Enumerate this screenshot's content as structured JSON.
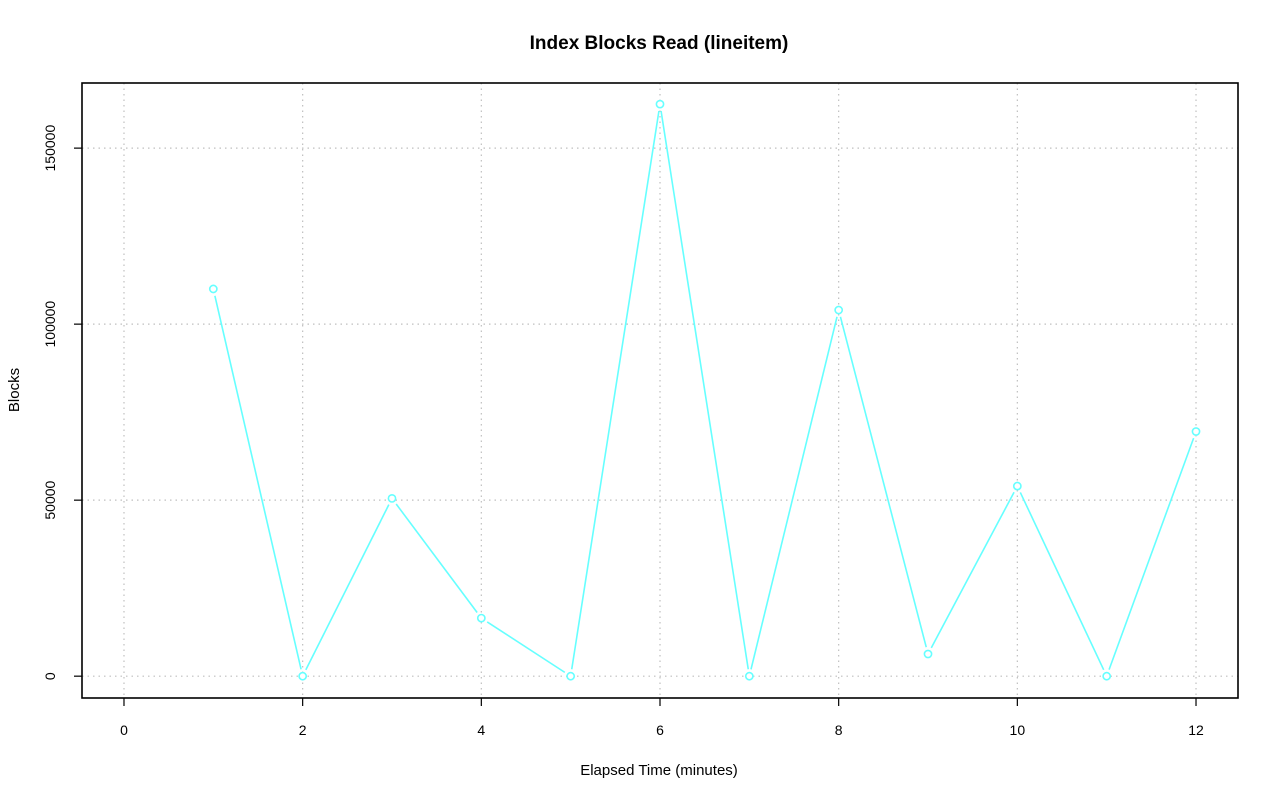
{
  "chart_data": {
    "type": "line",
    "title": "Index Blocks Read (lineitem)",
    "xlabel": "Elapsed Time (minutes)",
    "ylabel": "Blocks",
    "xlim": [
      -0.47,
      12.47
    ],
    "ylim": [
      -6200,
      168500
    ],
    "x_ticks": [
      0,
      2,
      4,
      6,
      8,
      10,
      12
    ],
    "y_ticks": [
      0,
      50000,
      100000,
      150000
    ],
    "grid": true,
    "legend": "none",
    "colors": {
      "series": "#66ffff",
      "grid": "#bfbfbf",
      "frame": "#000000"
    },
    "series": [
      {
        "x": [
          1,
          2,
          3,
          4,
          5,
          6,
          7,
          8,
          9,
          10,
          11,
          12
        ],
        "values": [
          110000,
          0,
          50500,
          16500,
          0,
          162500,
          0,
          104000,
          6300,
          54000,
          0,
          69500
        ]
      }
    ]
  }
}
